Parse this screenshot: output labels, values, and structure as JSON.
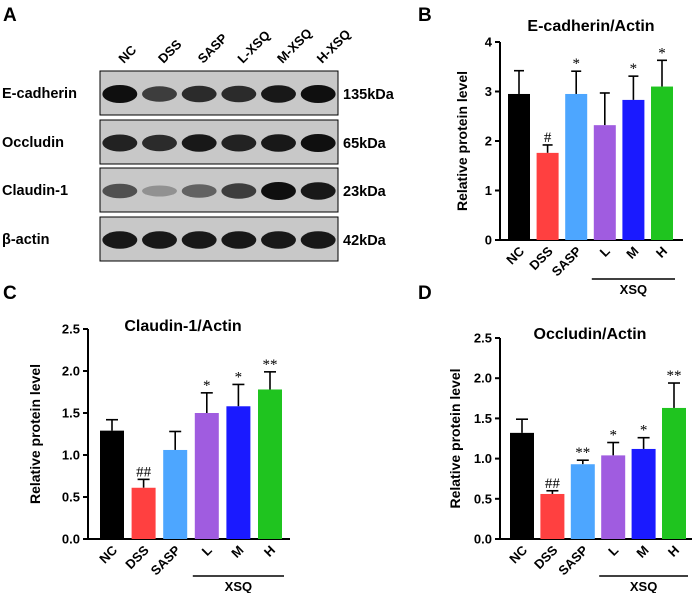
{
  "panels": {
    "a": "A",
    "b": "B",
    "c": "C",
    "d": "D"
  },
  "blot": {
    "lanes": [
      "NC",
      "DSS",
      "SASP",
      "L-XSQ",
      "M-XSQ",
      "H-XSQ"
    ],
    "rows": [
      {
        "protein": "E-cadherin",
        "size": "135kDa",
        "intensity": [
          1.0,
          0.75,
          0.85,
          0.85,
          0.95,
          1.0
        ]
      },
      {
        "protein": "Occludin",
        "size": "65kDa",
        "intensity": [
          0.9,
          0.85,
          0.95,
          0.9,
          0.95,
          1.0
        ]
      },
      {
        "protein": "Claudin-1",
        "size": "23kDa",
        "intensity": [
          0.65,
          0.3,
          0.55,
          0.75,
          1.0,
          0.95
        ]
      },
      {
        "protein": "β-actin",
        "size": "42kDa",
        "intensity": [
          0.95,
          0.95,
          0.95,
          0.95,
          0.95,
          0.95
        ]
      }
    ]
  },
  "colors": {
    "NC": "#000000",
    "DSS": "#ff4040",
    "SASP": "#4da6ff",
    "L": "#a05ce0",
    "M": "#1a1aff",
    "H": "#1fc41f"
  },
  "chart_data": [
    {
      "type": "bar",
      "title": "E-cadherin/Actin",
      "ylabel": "Relative protein level",
      "categories": [
        "NC",
        "DSS",
        "SASP",
        "L",
        "M",
        "H"
      ],
      "group_label": "XSQ",
      "values": [
        2.95,
        1.76,
        2.95,
        2.32,
        2.83,
        3.1
      ],
      "errors": [
        0.47,
        0.16,
        0.46,
        0.65,
        0.48,
        0.53
      ],
      "significance": [
        "",
        "#",
        "*",
        "",
        "*",
        "*"
      ],
      "ylim": [
        0,
        4
      ],
      "yticks": [
        "0",
        "1",
        "2",
        "3",
        "4"
      ]
    },
    {
      "type": "bar",
      "title": "Claudin-1/Actin",
      "ylabel": "Relative protein level",
      "categories": [
        "NC",
        "DSS",
        "SASP",
        "L",
        "M",
        "H"
      ],
      "group_label": "XSQ",
      "values": [
        1.29,
        0.61,
        1.06,
        1.5,
        1.58,
        1.78
      ],
      "errors": [
        0.13,
        0.1,
        0.22,
        0.24,
        0.26,
        0.21
      ],
      "significance": [
        "",
        "##",
        "",
        "*",
        "*",
        "**"
      ],
      "ylim": [
        0,
        2.5
      ],
      "yticks": [
        "0.0",
        "0.5",
        "1.0",
        "1.5",
        "2.0",
        "2.5"
      ]
    },
    {
      "type": "bar",
      "title": "Occludin/Actin",
      "ylabel": "Relative protein level",
      "categories": [
        "NC",
        "DSS",
        "SASP",
        "L",
        "M",
        "H"
      ],
      "group_label": "XSQ",
      "values": [
        1.32,
        0.56,
        0.93,
        1.04,
        1.12,
        1.63
      ],
      "errors": [
        0.17,
        0.04,
        0.05,
        0.16,
        0.14,
        0.31
      ],
      "significance": [
        "",
        "##",
        "**",
        "*",
        "*",
        "**"
      ],
      "ylim": [
        0,
        2.5
      ],
      "yticks": [
        "0.0",
        "0.5",
        "1.0",
        "1.5",
        "2.0",
        "2.5"
      ]
    }
  ]
}
